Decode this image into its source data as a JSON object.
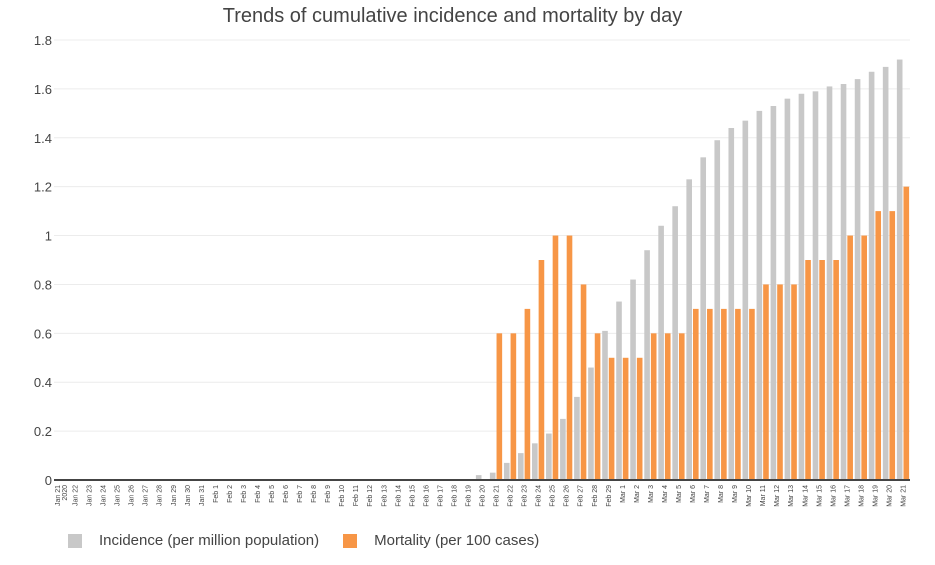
{
  "chart_data": {
    "type": "bar",
    "title": "Trends of cumulative incidence and mortality by day",
    "xlabel": "",
    "ylabel": "",
    "ylim": [
      0,
      1.8
    ],
    "yticks": [
      "0",
      "0.2",
      "0.4",
      "0.6",
      "0.8",
      "1",
      "1.2",
      "1.4",
      "1.6",
      "1.8"
    ],
    "grid": true,
    "legend_position": "bottom-left",
    "categories": [
      "Jan 21\n2020",
      "Jan 22",
      "Jan 23",
      "Jan 24",
      "Jan 25",
      "Jan 26",
      "Jan 27",
      "Jan 28",
      "Jan 29",
      "Jan 30",
      "Jan 31",
      "Feb 1",
      "Feb 2",
      "Feb 3",
      "Feb 4",
      "Feb 5",
      "Feb 6",
      "Feb 7",
      "Feb 8",
      "Feb 9",
      "Feb 10",
      "Feb 11",
      "Feb 12",
      "Feb 13",
      "Feb 14",
      "Feb 15",
      "Feb 16",
      "Feb 17",
      "Feb 18",
      "Feb 19",
      "Feb 20",
      "Feb 21",
      "Feb 22",
      "Feb 23",
      "Feb 24",
      "Feb 25",
      "Feb 26",
      "Feb 27",
      "Feb 28",
      "Feb 29",
      "Mar 1",
      "Mar 2",
      "Mar 3",
      "Mar 4",
      "Mar 5",
      "Mar 6",
      "Mar 7",
      "Mar 8",
      "Mar 9",
      "Mar 10",
      "Mar 11",
      "Mar 12",
      "Mar 13",
      "Mar 14",
      "Mar 15",
      "Mar 16",
      "Mar 17",
      "Mar 18",
      "Mar 19",
      "Mar 20",
      "Mar 21"
    ],
    "series": [
      {
        "name": "Incidence (per million population)",
        "color": "#c8c8c8",
        "values": [
          0,
          0,
          0,
          0,
          0,
          0,
          0,
          0,
          0,
          0,
          0,
          0,
          0,
          0,
          0,
          0,
          0,
          0,
          0,
          0.002,
          0.002,
          0.002,
          0.002,
          0.002,
          0.002,
          0.002,
          0.002,
          0.002,
          0.002,
          0.003,
          0.02,
          0.03,
          0.07,
          0.11,
          0.15,
          0.19,
          0.25,
          0.34,
          0.46,
          0.61,
          0.73,
          0.82,
          0.94,
          1.04,
          1.12,
          1.23,
          1.32,
          1.39,
          1.44,
          1.47,
          1.51,
          1.53,
          1.56,
          1.58,
          1.59,
          1.61,
          1.62,
          1.64,
          1.67,
          1.69,
          1.72
        ]
      },
      {
        "name": "Mortality (per 100 cases)",
        "color": "#f79646",
        "values": [
          0,
          0,
          0,
          0,
          0,
          0,
          0,
          0,
          0,
          0,
          0,
          0,
          0,
          0,
          0,
          0,
          0,
          0,
          0,
          0,
          0,
          0,
          0,
          0,
          0,
          0,
          0,
          0,
          0,
          0,
          0,
          0.6,
          0.6,
          0.7,
          0.9,
          1.0,
          1.0,
          0.8,
          0.6,
          0.5,
          0.5,
          0.5,
          0.6,
          0.6,
          0.6,
          0.7,
          0.7,
          0.7,
          0.7,
          0.7,
          0.8,
          0.8,
          0.8,
          0.9,
          0.9,
          0.9,
          1.0,
          1.0,
          1.1,
          1.1,
          1.2
        ]
      }
    ]
  }
}
